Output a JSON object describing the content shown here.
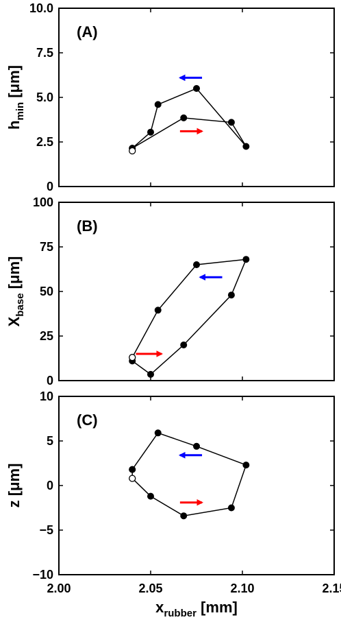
{
  "chart_data": [
    {
      "type": "line",
      "panel_label": "(A)",
      "ylabel": {
        "main": "h",
        "sub": "min",
        "unit": "[μm]"
      },
      "ylim": [
        0,
        10
      ],
      "yticks": [
        "0",
        "2.5",
        "5.0",
        "7.5",
        "10.0"
      ],
      "xlim": [
        2.0,
        2.15
      ],
      "series": [
        {
          "x": [
            2.04,
            2.05,
            2.054,
            2.075,
            2.102,
            2.094,
            2.068,
            2.04,
            2.04
          ],
          "y": [
            2.15,
            3.05,
            4.6,
            5.5,
            2.25,
            3.6,
            3.85,
            2.15,
            2.0
          ]
        }
      ],
      "start_marker": {
        "x": 2.04,
        "y": 2.0,
        "style": "open"
      },
      "arrows": [
        {
          "direction": "left",
          "color": "#0000ff",
          "x": [
            2.078,
            2.066
          ],
          "y": 6.1
        },
        {
          "direction": "right",
          "color": "#ff0000",
          "x": [
            2.066,
            2.078
          ],
          "y": 3.1
        }
      ]
    },
    {
      "type": "line",
      "panel_label": "(B)",
      "ylabel": {
        "main": "X",
        "sub": "base",
        "unit": "[μm]"
      },
      "ylim": [
        0,
        100
      ],
      "yticks": [
        "0",
        "25",
        "50",
        "75",
        "100"
      ],
      "xlim": [
        2.0,
        2.15
      ],
      "series": [
        {
          "x": [
            2.04,
            2.054,
            2.075,
            2.102,
            2.094,
            2.068,
            2.05,
            2.04,
            2.04
          ],
          "y": [
            13,
            39.5,
            65,
            68,
            48,
            20,
            3.5,
            11,
            13
          ]
        }
      ],
      "start_marker": {
        "x": 2.04,
        "y": 13,
        "style": "open"
      },
      "arrows": [
        {
          "direction": "left",
          "color": "#0000ff",
          "x": [
            2.089,
            2.077
          ],
          "y": 58
        },
        {
          "direction": "right",
          "color": "#ff0000",
          "x": [
            2.042,
            2.056
          ],
          "y": 15
        }
      ]
    },
    {
      "type": "line",
      "panel_label": "(C)",
      "ylabel": {
        "main": "z",
        "sub": "",
        "unit": "[μm]"
      },
      "ylim": [
        -10,
        10
      ],
      "yticks": [
        "−10",
        "−5",
        "0",
        "5",
        "10"
      ],
      "xlim": [
        2.0,
        2.15
      ],
      "xticks": [
        "2.00",
        "2.05",
        "2.10",
        "2.15"
      ],
      "xlabel": {
        "main": "x",
        "sub": "rubber",
        "unit": "[mm]"
      },
      "series": [
        {
          "x": [
            2.04,
            2.054,
            2.075,
            2.102,
            2.094,
            2.068,
            2.05,
            2.04,
            2.04
          ],
          "y": [
            1.8,
            5.9,
            4.4,
            2.3,
            -2.5,
            -3.4,
            -1.2,
            0.8,
            1.8
          ]
        }
      ],
      "start_marker": {
        "x": 2.04,
        "y": 0.8,
        "style": "open"
      },
      "arrows": [
        {
          "direction": "left",
          "color": "#0000ff",
          "x": [
            2.078,
            2.066
          ],
          "y": 3.4
        },
        {
          "direction": "right",
          "color": "#ff0000",
          "x": [
            2.066,
            2.078
          ],
          "y": -1.9
        }
      ]
    }
  ]
}
